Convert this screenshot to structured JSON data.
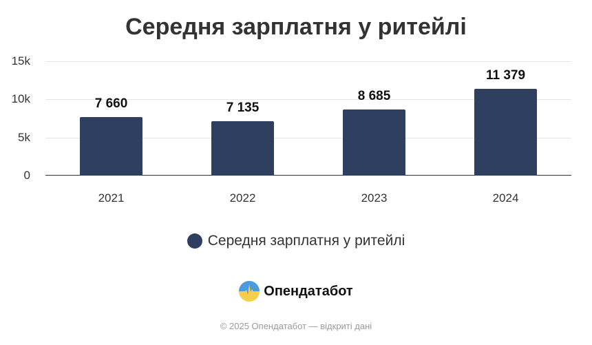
{
  "title": "Середня зарплатня у ритейлі",
  "chart_data": {
    "type": "bar",
    "title": "Середня зарплатня у ритейлі",
    "categories": [
      "2021",
      "2022",
      "2023",
      "2024"
    ],
    "values": [
      7660,
      7135,
      8685,
      11379
    ],
    "value_labels": [
      "7 660",
      "7 135",
      "8 685",
      "11 379"
    ],
    "series": [
      {
        "name": "Середня зарплатня у ритейлі",
        "values": [
          7660,
          7135,
          8685,
          11379
        ],
        "color": "#2e3f5f"
      }
    ],
    "xlabel": "",
    "ylabel": "",
    "ylim": [
      0,
      15000
    ],
    "yticks": [
      0,
      5000,
      10000,
      15000
    ],
    "ytick_labels": [
      "0",
      "5k",
      "10k",
      "15k"
    ],
    "grid": true,
    "legend_position": "bottom"
  },
  "legend": {
    "label": "Середня зарплатня у ритейлі",
    "color": "#2e3f5f"
  },
  "brand": {
    "name": "Опендатабот",
    "icon": "opendatabot-logo-icon"
  },
  "footer": {
    "text": "© 2025 Опендатабот — відкриті дані"
  }
}
